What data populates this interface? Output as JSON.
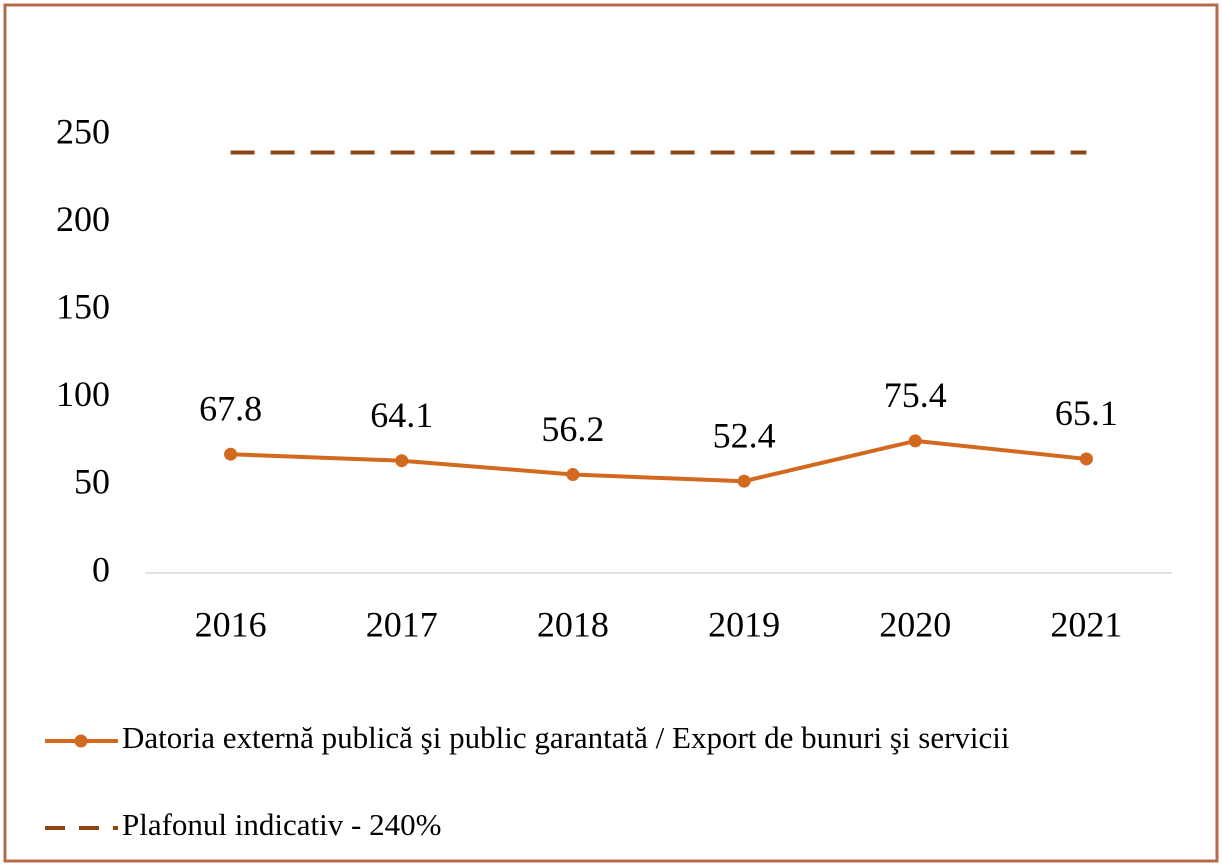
{
  "chart_data": {
    "type": "line",
    "categories": [
      "2016",
      "2017",
      "2018",
      "2019",
      "2020",
      "2021"
    ],
    "series": [
      {
        "name": "Datoria externă publică şi public garantată / Export de bunuri şi servicii",
        "color": "#d2691e",
        "dash": false,
        "markers": true,
        "data_labels": true,
        "values": [
          67.8,
          64.1,
          56.2,
          52.4,
          75.4,
          65.1
        ]
      },
      {
        "name": "Plafonul indicativ - 240%",
        "color": "#8b4513",
        "dash": true,
        "markers": false,
        "data_labels": false,
        "values": [
          240,
          240,
          240,
          240,
          240,
          240
        ]
      }
    ],
    "ylim": [
      0,
      250
    ],
    "yticks": [
      0,
      50,
      100,
      150,
      200,
      250
    ],
    "grid": false,
    "legend": "bottom"
  }
}
